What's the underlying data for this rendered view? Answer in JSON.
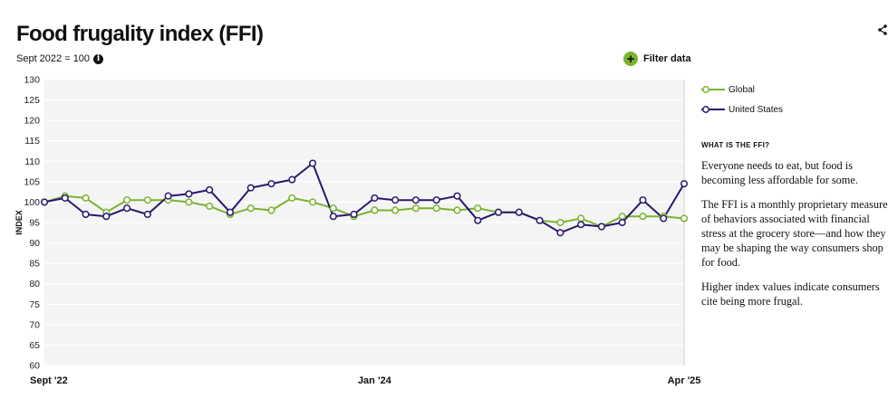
{
  "header": {
    "title": "Food frugality index (FFI)",
    "subtitle": "Sept 2022 = 100",
    "filter_label": "Filter data"
  },
  "icons": {
    "info": "info-icon",
    "filter": "plus-icon",
    "share": "share-icon"
  },
  "colors": {
    "global": "#7ab32e",
    "united_states": "#2a1670",
    "plot_bg": "#f4f4f4",
    "grid": "#ffffff"
  },
  "legend": {
    "items": [
      "Global",
      "United States"
    ]
  },
  "info_panel": {
    "heading": "WHAT IS THE FFI?",
    "paragraphs": [
      "Everyone needs to eat, but food is becoming less affordable for some.",
      "The FFI is a monthly proprietary measure of behaviors associated with financial stress at the grocery store—and how they may be shaping the way consumers shop for food.",
      "Higher index values indicate consumers cite being more frugal."
    ]
  },
  "chart_data": {
    "type": "line",
    "ylabel": "INDEX",
    "xlabel": "",
    "ylim": [
      60,
      130
    ],
    "yticks": [
      60,
      65,
      70,
      75,
      80,
      85,
      90,
      95,
      100,
      105,
      110,
      115,
      120,
      125,
      130
    ],
    "x": [
      "Sep 2022",
      "Oct 2022",
      "Nov 2022",
      "Dec 2022",
      "Jan 2023",
      "Feb 2023",
      "Mar 2023",
      "Apr 2023",
      "May 2023",
      "Jun 2023",
      "Jul 2023",
      "Aug 2023",
      "Sep 2023",
      "Oct 2023",
      "Nov 2023",
      "Dec 2023",
      "Jan 2024",
      "Feb 2024",
      "Mar 2024",
      "Apr 2024",
      "May 2024",
      "Jun 2024",
      "Jul 2024",
      "Aug 2024",
      "Sep 2024",
      "Oct 2024",
      "Nov 2024",
      "Dec 2024",
      "Jan 2025",
      "Feb 2025",
      "Mar 2025",
      "Apr 2025"
    ],
    "x_tick_labels": [
      {
        "index": 0,
        "label": "Sept '22"
      },
      {
        "index": 16,
        "label": "Jan '24"
      },
      {
        "index": 31,
        "label": "Apr '25"
      }
    ],
    "grid": true,
    "legend_position": "right",
    "series": [
      {
        "name": "Global",
        "values": [
          100,
          101.5,
          101,
          97.5,
          100.5,
          100.5,
          100.5,
          100,
          99,
          97,
          98.5,
          98,
          101,
          100,
          98.5,
          96.5,
          98,
          98,
          98.5,
          98.5,
          98,
          98.5,
          97.5,
          97.5,
          95.5,
          95,
          96,
          94,
          96.5,
          96.5,
          96.5,
          96
        ]
      },
      {
        "name": "United States",
        "values": [
          100,
          101,
          97,
          96.5,
          98.5,
          97,
          101.5,
          102,
          103,
          97.5,
          103.5,
          104.5,
          105.5,
          109.5,
          96.5,
          97,
          101,
          100.5,
          100.5,
          100.5,
          101.5,
          95.5,
          97.5,
          97.5,
          95.5,
          92.5,
          94.5,
          94,
          95,
          100.5,
          96,
          104.5
        ]
      }
    ]
  }
}
